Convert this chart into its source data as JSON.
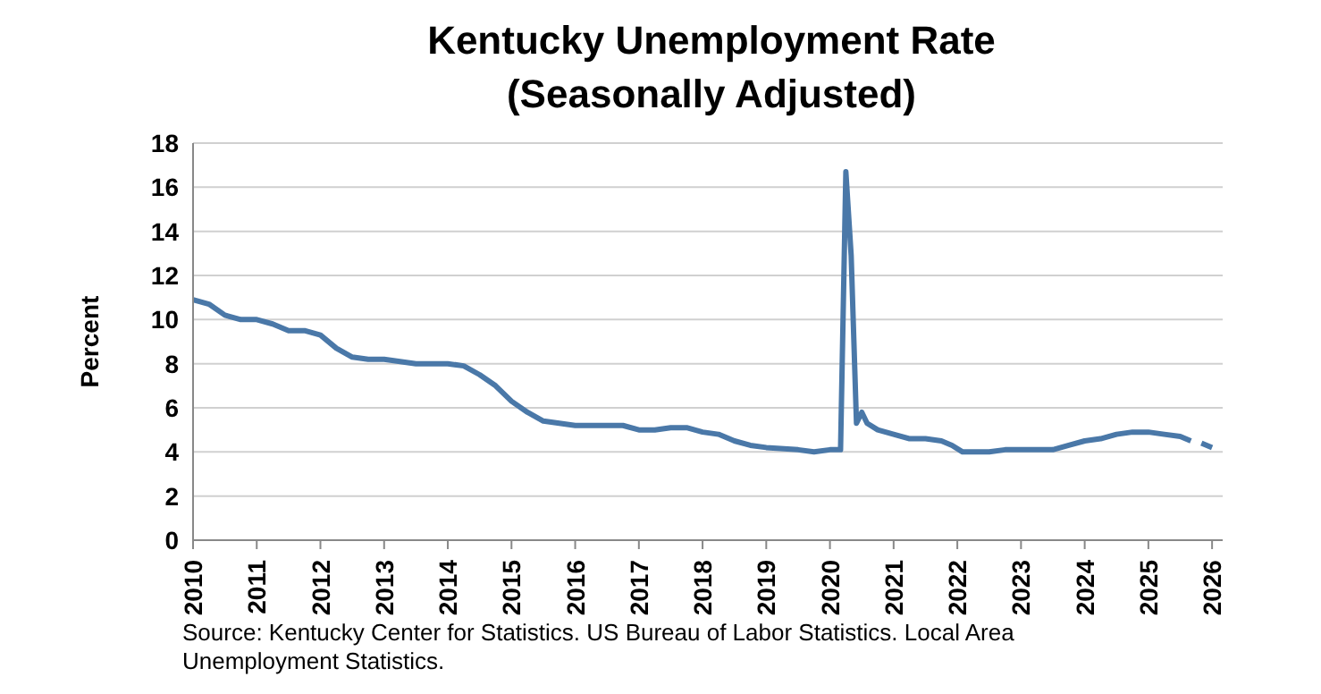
{
  "chart_data": {
    "type": "line",
    "title": "Kentucky Unemployment Rate",
    "subtitle": "(Seasonally Adjusted)",
    "ylabel": "Percent",
    "annotations": [
      "Source: Kentucky Center for Statistics. US Bureau of Labor Statistics. Local Area Unemployment Statistics."
    ],
    "x": [
      "2010-01",
      "2010-04",
      "2010-07",
      "2010-10",
      "2011-01",
      "2011-04",
      "2011-07",
      "2011-10",
      "2012-01",
      "2012-04",
      "2012-07",
      "2012-10",
      "2013-01",
      "2013-04",
      "2013-07",
      "2014-01",
      "2014-04",
      "2014-07",
      "2014-10",
      "2015-01",
      "2015-04",
      "2015-07",
      "2015-10",
      "2016-01",
      "2016-07",
      "2016-10",
      "2017-01",
      "2017-04",
      "2017-07",
      "2017-10",
      "2018-01",
      "2018-04",
      "2018-07",
      "2018-10",
      "2019-01",
      "2019-07",
      "2019-10",
      "2020-01",
      "2020-03",
      "2020-04",
      "2020-05",
      "2020-06",
      "2020-07",
      "2020-08",
      "2020-10",
      "2021-01",
      "2021-04",
      "2021-07",
      "2021-10",
      "2021-12",
      "2022-02",
      "2022-07",
      "2022-10",
      "2023-01",
      "2023-07",
      "2023-10",
      "2024-01",
      "2024-04",
      "2024-07",
      "2024-10",
      "2025-01",
      "2025-04",
      "2025-07",
      "2025-09",
      "2025-10",
      "2025-11",
      "2026-01"
    ],
    "series": [
      {
        "color": "#4a78a8",
        "values": [
          10.9,
          10.7,
          10.2,
          10.0,
          10.0,
          9.8,
          9.5,
          9.5,
          9.3,
          8.7,
          8.3,
          8.2,
          8.2,
          8.1,
          8.0,
          8.0,
          7.9,
          7.5,
          7.0,
          6.3,
          5.8,
          5.4,
          5.3,
          5.2,
          5.2,
          5.2,
          5.0,
          5.0,
          5.1,
          5.1,
          4.9,
          4.8,
          4.5,
          4.3,
          4.2,
          4.1,
          4.0,
          4.1,
          4.1,
          16.7,
          12.9,
          5.3,
          5.8,
          5.3,
          5.0,
          4.8,
          4.6,
          4.6,
          4.5,
          4.3,
          4.0,
          4.0,
          4.1,
          4.1,
          4.1,
          4.3,
          4.5,
          4.6,
          4.8,
          4.9,
          4.9,
          4.8,
          4.7,
          4.5,
          null,
          4.4,
          4.2
        ]
      }
    ],
    "xlim": [
      "2010-01",
      "2026-03"
    ],
    "xticks": [
      "2010",
      "2011",
      "2012",
      "2013",
      "2014",
      "2015",
      "2016",
      "2017",
      "2018",
      "2019",
      "2020",
      "2021",
      "2022",
      "2023",
      "2024",
      "2025",
      "2026"
    ],
    "ylim": [
      0,
      18
    ],
    "yticks": [
      0,
      2,
      4,
      6,
      8,
      10,
      12,
      14,
      16,
      18
    ],
    "grid": "y",
    "marker": "none",
    "line_style": "solid"
  }
}
